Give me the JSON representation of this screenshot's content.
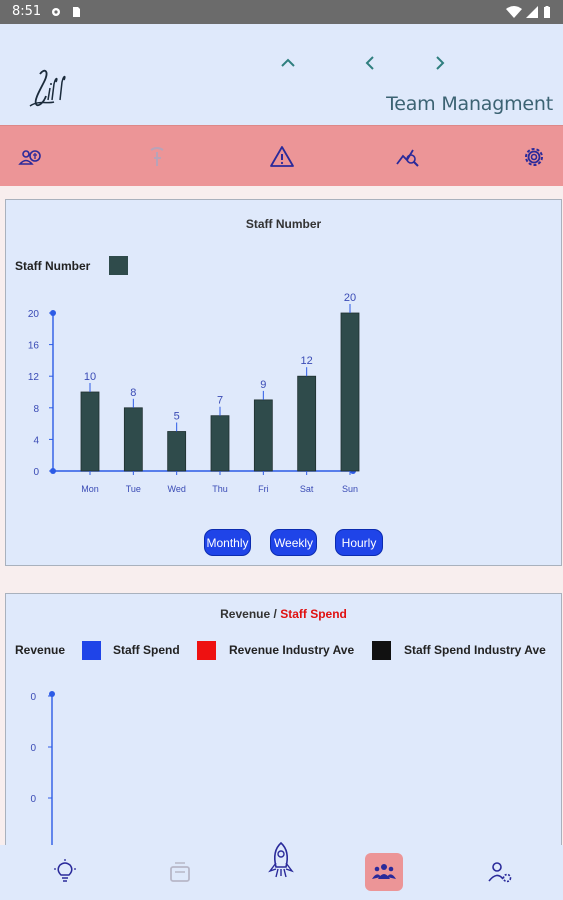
{
  "status_bar": {
    "time": "8:51"
  },
  "header": {
    "logo_text": "Lill",
    "title": "Team Managment"
  },
  "toolbar": {
    "icons": [
      "people-money-icon",
      "hand-tap-icon",
      "warning-icon",
      "chart-search-icon",
      "gear-icon"
    ]
  },
  "chart1": {
    "title": "Staff Number",
    "legend_label": "Staff Number",
    "series_color": "#2f4b4b",
    "chart_data": {
      "type": "bar",
      "title": "Staff Number",
      "categories": [
        "Mon",
        "Tue",
        "Wed",
        "Thu",
        "Fri",
        "Sat",
        "Sun"
      ],
      "series": [
        {
          "name": "Staff Number",
          "values": [
            10,
            8,
            5,
            7,
            9,
            12,
            20
          ]
        }
      ],
      "ylim": [
        0,
        20
      ],
      "yticks": [
        0,
        4,
        8,
        12,
        16,
        20
      ],
      "grid": false,
      "legend": "top-left"
    },
    "buttons": {
      "monthly": "Monthly",
      "weekly": "Weekly",
      "hourly": "Hourly"
    }
  },
  "chart2": {
    "title_part1": "Revenue /",
    "title_part2": "Staff Spend",
    "title_part2_color": "#e01010",
    "legend": [
      {
        "label": "Revenue",
        "color": "#1f44e8"
      },
      {
        "label": "Staff Spend",
        "color": "#ee1111"
      },
      {
        "label": "Revenue Industry Ave",
        "color": "#111111"
      },
      {
        "label": "Staff Spend Industry Ave",
        "color": ""
      }
    ],
    "yticks": [
      "0",
      "0",
      "0"
    ]
  },
  "bottom_nav": {
    "items": [
      "lightbulb-icon",
      "inbox-icon",
      "rocket-icon",
      "team-icon",
      "user-settings-icon"
    ],
    "active": "team-icon"
  }
}
